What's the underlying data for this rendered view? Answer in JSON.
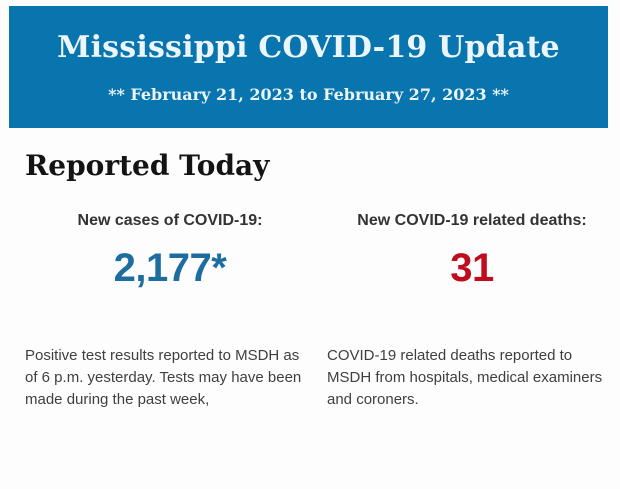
{
  "banner": {
    "title": "Mississippi COVID-19 Update",
    "subtitle": "** February 21, 2023 to February 27, 2023 **",
    "style": "background:#0875ae;color:#ecf5fa;"
  },
  "colors": {
    "banner_background": "#0875ae",
    "banner_text": "#ecf5fa",
    "new_cases_value": "#1d6da1",
    "new_deaths_value": "#c00d1d"
  },
  "main": {
    "heading": "Reported Today",
    "stats": [
      {
        "label": "New cases of COVID-19:",
        "value": "2,177*",
        "value_style": "color:#1d6da1;",
        "description": "Positive test results reported to MSDH as of 6 p.m. yesterday. Tests may have been made during the past week,"
      },
      {
        "label": "New COVID-19 related deaths:",
        "value": "31",
        "value_style": "color:#c00d1d;",
        "description": "COVID-19 related deaths reported to MSDH from hospitals, medical examiners and coroners."
      }
    ]
  }
}
